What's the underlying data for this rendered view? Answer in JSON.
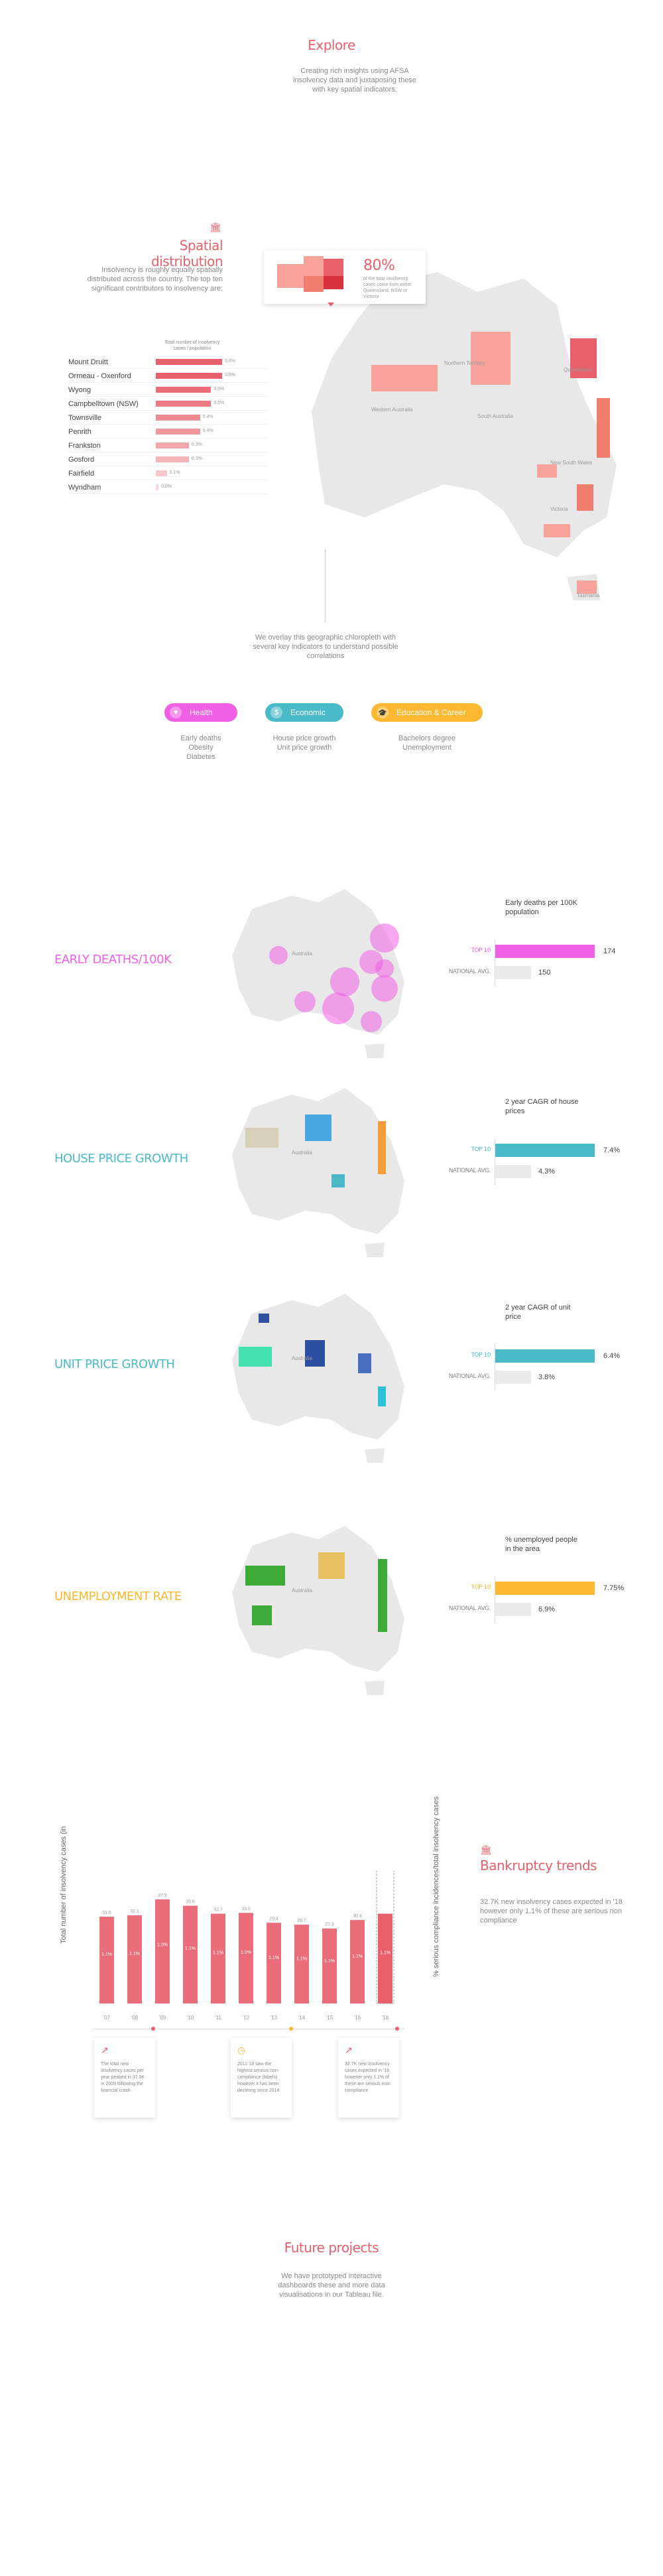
{
  "colors": {
    "accent": "#e8606c",
    "health": "#f060e4",
    "economic": "#4bbac8",
    "education": "#fbb830",
    "green": "#3cab38"
  },
  "explore": {
    "title": "Explore",
    "text": "Creating rich insights using AFSA insolvency data and juxtaposing these with key spatial indicators."
  },
  "spatial": {
    "icon_name": "bank-icon",
    "title": "Spatial distribution",
    "text": "Insolvency is roughly equally spatially distributed across the country. The top ten significant contributors to insolvency are:",
    "table_header": "Total number of insolvency cases / population",
    "rows": [
      {
        "label": "Mount Druitt",
        "pct": "0.6%",
        "value": 0.6
      },
      {
        "label": "Ormeau - Oxenford",
        "pct": "0.6%",
        "value": 0.6
      },
      {
        "label": "Wyong",
        "pct": "0.5%",
        "value": 0.5
      },
      {
        "label": "Campbelltown (NSW)",
        "pct": "0.5%",
        "value": 0.5
      },
      {
        "label": "Townsville",
        "pct": "0.4%",
        "value": 0.4
      },
      {
        "label": "Penrith",
        "pct": "0.4%",
        "value": 0.4
      },
      {
        "label": "Frankston",
        "pct": "0.3%",
        "value": 0.3
      },
      {
        "label": "Gosford",
        "pct": "0.3%",
        "value": 0.3
      },
      {
        "label": "Fairfield",
        "pct": "0.1%",
        "value": 0.1
      },
      {
        "label": "Wyndham",
        "pct": "0.0%",
        "value": 0.0
      }
    ],
    "popup_pct": "80%",
    "popup_text": "of the total insolvency cases come from either Queensland, NSW or Victoria",
    "map_labels": {
      "wa": "Western Australia",
      "nt": "Northern Territory",
      "sa": "South Australia",
      "qld": "Queensland",
      "nsw": "New South Wales",
      "vic": "Victoria",
      "tas": "Tasmania"
    },
    "overlay_text": "We overlay this geographic chloropleth with several key indicators to understand possible correlations"
  },
  "categories": [
    {
      "label": "Health",
      "icon_name": "heart-icon",
      "items": [
        "Early deaths",
        "Obesity",
        "Diabetes"
      ]
    },
    {
      "label": "Economic",
      "icon_name": "dollar-icon",
      "items": [
        "House price growth",
        "Unit price growth"
      ]
    },
    {
      "label": "Education & Career",
      "icon_name": "graduation-cap-icon",
      "items": [
        "Bachelors degree",
        "Unemployment"
      ]
    }
  ],
  "indicators": [
    {
      "title": "EARLY DEATHS/100K",
      "color": "#f060e4",
      "subtitle": "Early deaths per 100K population",
      "top_label": "TOP 10",
      "top_value": "174",
      "avg_label": "NATIONAL AVG.",
      "avg_value": "150",
      "top_num": 174,
      "avg_num": 150,
      "map_label": "Australia"
    },
    {
      "title": "HOUSE PRICE GROWTH",
      "color": "#4bbac8",
      "subtitle": "2 year CAGR of house prices",
      "top_label": "TOP 10",
      "top_value": "7.4%",
      "avg_label": "NATIONAL AVG.",
      "avg_value": "4.3%",
      "top_num": 7.4,
      "avg_num": 4.3,
      "map_label": "Australia"
    },
    {
      "title": "UNIT PRICE GROWTH",
      "color": "#4bbac8",
      "subtitle": "2 year CAGR of unit price",
      "top_label": "TOP 10",
      "top_value": "6.4%",
      "avg_label": "NATIONAL AVG.",
      "avg_value": "3.8%",
      "top_num": 6.4,
      "avg_num": 3.8,
      "map_label": "Australia"
    },
    {
      "title": "UNEMPLOYMENT RATE",
      "color": "#fbb830",
      "subtitle": "% unemployed people in the area",
      "top_label": "TOP 10",
      "top_value": "7.75%",
      "avg_label": "NATIONAL AVG.",
      "avg_value": "6.9%",
      "top_num": 7.75,
      "avg_num": 6.9,
      "map_label": "Australia"
    }
  ],
  "bankruptcy": {
    "icon_name": "bank-icon",
    "title": "Bankruptcy trends",
    "text": "32.7K new insolvency cases expected in '18 however only 1.1% of these are serious non compliance",
    "ylabel_left": "Total number of insolvency cases (in",
    "ylabel_right": "% serious compliance incidences/total insolvency cases",
    "highlight": "32.7",
    "bars": [
      {
        "year": "'07",
        "value": "31.6",
        "pct": "1.1%"
      },
      {
        "year": "'08",
        "value": "32.1",
        "pct": "1.1%"
      },
      {
        "year": "'09",
        "value": "37.9",
        "pct": "1.0%"
      },
      {
        "year": "'10",
        "value": "35.6",
        "pct": "1.1%"
      },
      {
        "year": "'11",
        "value": "32.7",
        "pct": "1.1%"
      },
      {
        "year": "'12",
        "value": "33.0",
        "pct": "1.0%"
      },
      {
        "year": "'13",
        "value": "29.4",
        "pct": "1.1%"
      },
      {
        "year": "'14",
        "value": "28.7",
        "pct": "1.1%"
      },
      {
        "year": "'15",
        "value": "27.3",
        "pct": "1.1%"
      },
      {
        "year": "'16",
        "value": "30.4",
        "pct": "1.1%"
      },
      {
        "year": "'18",
        "value": "",
        "pct": "1.1%"
      }
    ],
    "notes": [
      {
        "icon_name": "trend-up-icon",
        "text": "The total new insolvency cases per year peaked in 37.9K in 2009 following the financial crash"
      },
      {
        "icon_name": "clock-icon",
        "text": "2011-18 saw the highest serious non-compliance (labels) however it has been declining since 2014"
      },
      {
        "icon_name": "trend-up-icon",
        "text": "32.7K new insolvency cases expected in '18 however only 1.1% of these are serious non-compliance"
      }
    ]
  },
  "future": {
    "title": "Future projects",
    "text": "We have prototyped interactive dashboards these and more data visualisations in our Tableau file."
  }
}
